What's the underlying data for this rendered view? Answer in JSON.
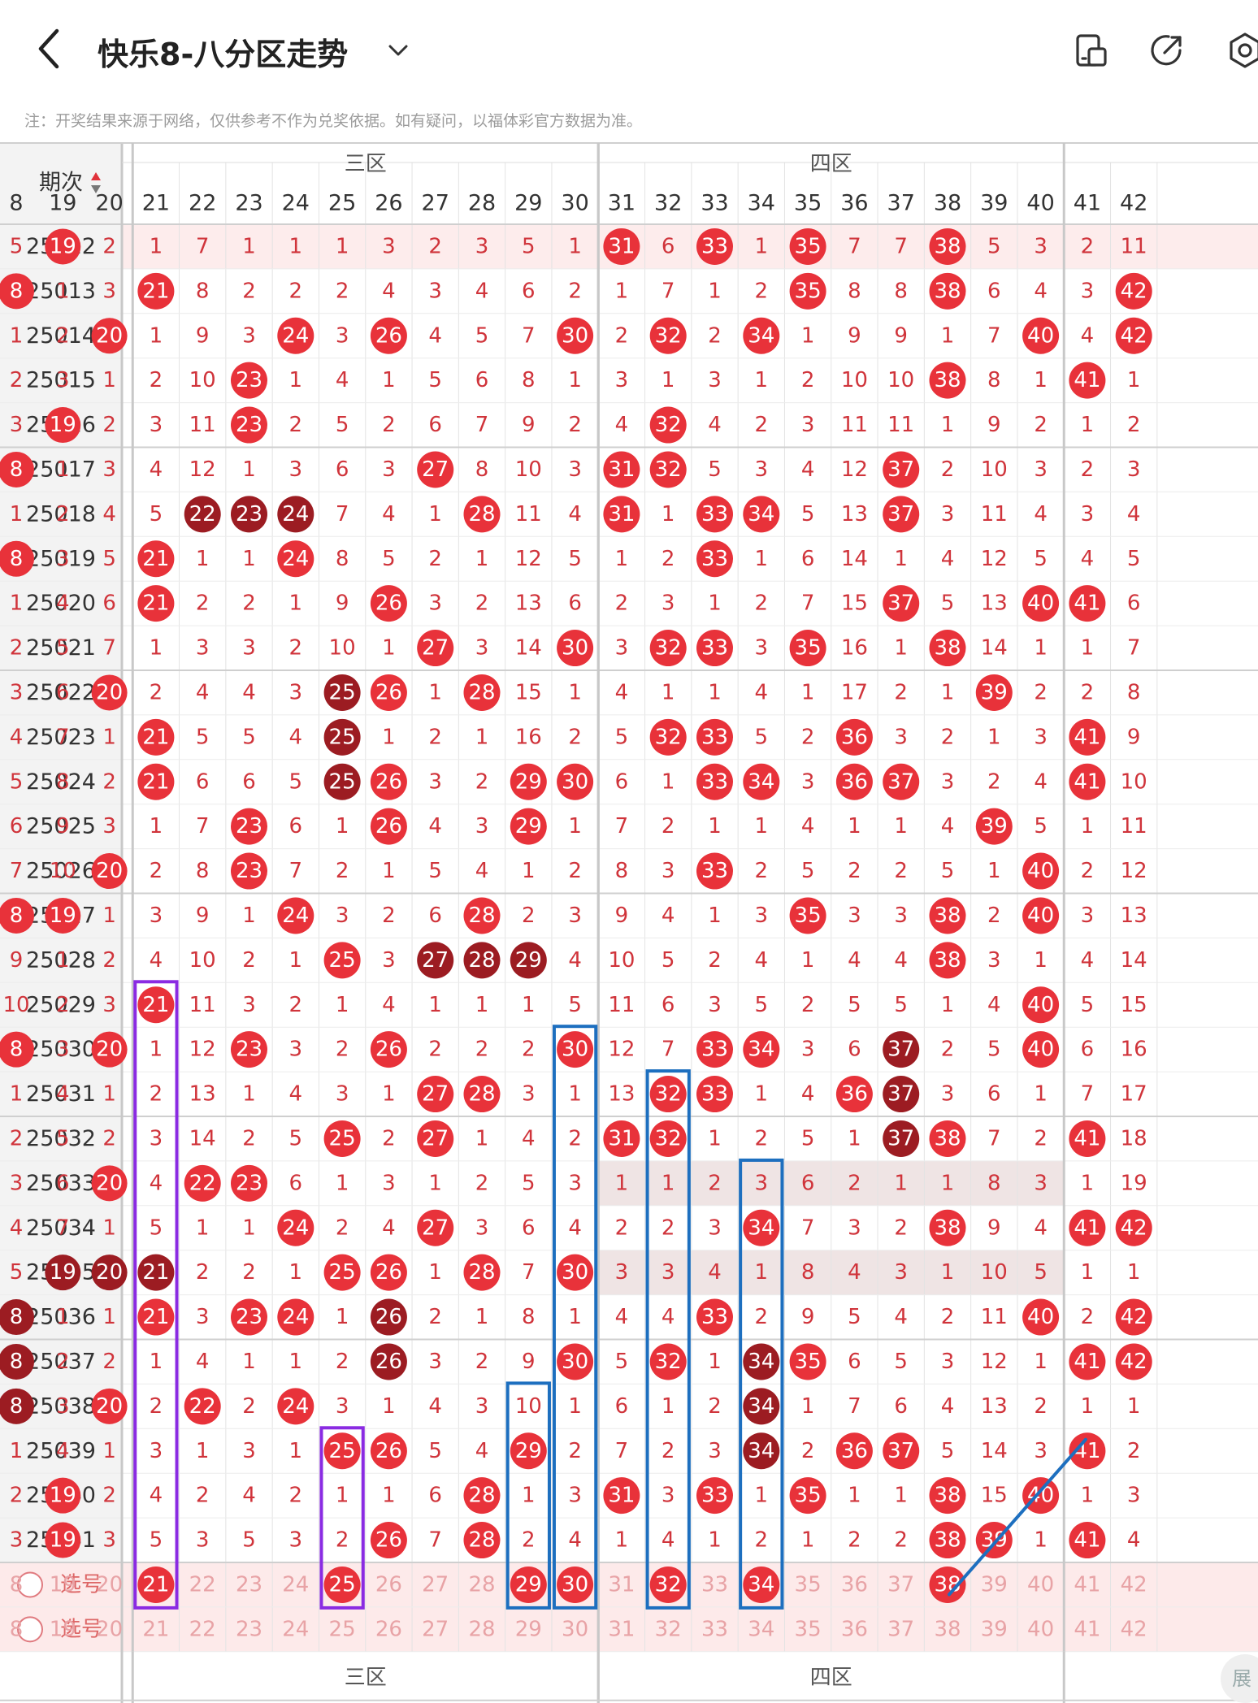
{
  "header": {
    "title": "快乐8-八分区走势",
    "note": "注：开奖结果来源于网络，仅供参考不作为兑奖依据。如有疑问，以福体彩官方数据为准。"
  },
  "icons": [
    "back-arrow-icon",
    "chevron-down-icon",
    "screen-split-icon",
    "share-icon",
    "settings-icon",
    "sort-arrows-icon",
    "radio-circle-icon"
  ],
  "colors": {
    "ball": "#e8323a",
    "ball_dark": "#9c1c22",
    "miss_text": "#d0343b",
    "accent_purple": "#8a2be2",
    "accent_blue": "#1d6fbf"
  },
  "table": {
    "period_header": "期次",
    "zones": [
      {
        "name": "三区",
        "from": 21,
        "to": 30
      },
      {
        "name": "四区",
        "from": 31,
        "to": 40
      }
    ],
    "visible_columns": [
      "8",
      "19",
      "20",
      "21",
      "22",
      "23",
      "24",
      "25",
      "26",
      "27",
      "28",
      "29",
      "30",
      "31",
      "32",
      "33",
      "34",
      "35",
      "36",
      "37",
      "38",
      "39",
      "40",
      "41",
      "42"
    ],
    "rows": [
      {
        "period": "25012",
        "cells": [
          "5",
          "19",
          "2",
          "1",
          "7",
          "1",
          "1",
          "1",
          "3",
          "2",
          "3",
          "5",
          "1",
          "31",
          "6",
          "33",
          "1",
          "35",
          "7",
          "7",
          "38",
          "5",
          "3",
          "2",
          "11"
        ]
      },
      {
        "period": "25013",
        "cells": [
          "8",
          "1",
          "3",
          "21",
          "8",
          "2",
          "2",
          "2",
          "4",
          "3",
          "4",
          "6",
          "2",
          "1",
          "7",
          "1",
          "2",
          "35",
          "8",
          "8",
          "38",
          "6",
          "4",
          "3",
          "42"
        ]
      },
      {
        "period": "25014",
        "cells": [
          "1",
          "2",
          "20",
          "1",
          "9",
          "3",
          "24",
          "3",
          "26",
          "4",
          "5",
          "7",
          "30",
          "2",
          "32",
          "2",
          "34",
          "1",
          "9",
          "9",
          "1",
          "7",
          "40",
          "4",
          "42"
        ]
      },
      {
        "period": "25015",
        "cells": [
          "2",
          "3",
          "1",
          "2",
          "10",
          "23",
          "1",
          "4",
          "1",
          "5",
          "6",
          "8",
          "1",
          "3",
          "1",
          "3",
          "1",
          "2",
          "10",
          "10",
          "38",
          "8",
          "1",
          "41",
          "1"
        ]
      },
      {
        "period": "25016",
        "cells": [
          "3",
          "19",
          "2",
          "3",
          "11",
          "23",
          "2",
          "5",
          "2",
          "6",
          "7",
          "9",
          "2",
          "4",
          "32",
          "4",
          "2",
          "3",
          "11",
          "11",
          "1",
          "9",
          "2",
          "1",
          "2"
        ]
      },
      {
        "period": "25017",
        "cells": [
          "8",
          "1",
          "3",
          "4",
          "12",
          "1",
          "3",
          "6",
          "3",
          "27",
          "8",
          "10",
          "3",
          "31",
          "32",
          "5",
          "3",
          "4",
          "12",
          "37",
          "2",
          "10",
          "3",
          "2",
          "3"
        ]
      },
      {
        "period": "25018",
        "cells": [
          "1",
          "2",
          "4",
          "5",
          "22",
          "23",
          "24",
          "7",
          "4",
          "1",
          "28",
          "11",
          "4",
          "31",
          "1",
          "33",
          "34",
          "5",
          "13",
          "37",
          "3",
          "11",
          "4",
          "3",
          "4"
        ]
      },
      {
        "period": "25019",
        "cells": [
          "8",
          "3",
          "5",
          "21",
          "1",
          "1",
          "24",
          "8",
          "5",
          "2",
          "1",
          "12",
          "5",
          "1",
          "2",
          "33",
          "1",
          "6",
          "14",
          "1",
          "4",
          "12",
          "5",
          "4",
          "5"
        ]
      },
      {
        "period": "25020",
        "cells": [
          "1",
          "4",
          "6",
          "21",
          "2",
          "2",
          "1",
          "9",
          "26",
          "3",
          "2",
          "13",
          "6",
          "2",
          "3",
          "1",
          "2",
          "7",
          "15",
          "37",
          "5",
          "13",
          "40",
          "41",
          "6"
        ]
      },
      {
        "period": "25021",
        "cells": [
          "2",
          "5",
          "7",
          "1",
          "3",
          "3",
          "2",
          "10",
          "1",
          "27",
          "3",
          "14",
          "30",
          "3",
          "32",
          "33",
          "3",
          "35",
          "16",
          "1",
          "38",
          "14",
          "1",
          "1",
          "7"
        ]
      },
      {
        "period": "25022",
        "cells": [
          "3",
          "6",
          "20",
          "2",
          "4",
          "4",
          "3",
          "25",
          "26",
          "1",
          "28",
          "15",
          "1",
          "4",
          "1",
          "1",
          "4",
          "1",
          "17",
          "2",
          "1",
          "39",
          "2",
          "2",
          "8"
        ]
      },
      {
        "period": "25023",
        "cells": [
          "4",
          "7",
          "1",
          "21",
          "5",
          "5",
          "4",
          "25",
          "1",
          "2",
          "1",
          "16",
          "2",
          "5",
          "32",
          "33",
          "5",
          "2",
          "36",
          "3",
          "2",
          "1",
          "3",
          "41",
          "9"
        ]
      },
      {
        "period": "25024",
        "cells": [
          "5",
          "8",
          "2",
          "21",
          "6",
          "6",
          "5",
          "25",
          "26",
          "3",
          "2",
          "29",
          "30",
          "6",
          "1",
          "33",
          "34",
          "3",
          "36",
          "37",
          "3",
          "2",
          "4",
          "41",
          "10"
        ]
      },
      {
        "period": "25025",
        "cells": [
          "6",
          "9",
          "3",
          "1",
          "7",
          "23",
          "6",
          "1",
          "26",
          "4",
          "3",
          "29",
          "1",
          "7",
          "2",
          "1",
          "1",
          "4",
          "1",
          "1",
          "4",
          "39",
          "5",
          "1",
          "11"
        ]
      },
      {
        "period": "25026",
        "cells": [
          "7",
          "10",
          "20",
          "2",
          "8",
          "23",
          "7",
          "2",
          "1",
          "5",
          "4",
          "1",
          "2",
          "8",
          "3",
          "33",
          "2",
          "5",
          "2",
          "2",
          "5",
          "1",
          "40",
          "2",
          "12"
        ]
      },
      {
        "period": "25027",
        "cells": [
          "8",
          "19",
          "1",
          "3",
          "9",
          "1",
          "24",
          "3",
          "2",
          "6",
          "28",
          "2",
          "3",
          "9",
          "4",
          "1",
          "3",
          "35",
          "3",
          "3",
          "38",
          "2",
          "40",
          "3",
          "13"
        ]
      },
      {
        "period": "25028",
        "cells": [
          "9",
          "1",
          "2",
          "4",
          "10",
          "2",
          "1",
          "25",
          "3",
          "27",
          "28",
          "29",
          "4",
          "10",
          "5",
          "2",
          "4",
          "1",
          "4",
          "4",
          "38",
          "3",
          "1",
          "4",
          "14"
        ]
      },
      {
        "period": "25029",
        "cells": [
          "10",
          "2",
          "3",
          "21",
          "11",
          "3",
          "2",
          "1",
          "4",
          "1",
          "1",
          "1",
          "5",
          "11",
          "6",
          "3",
          "5",
          "2",
          "5",
          "5",
          "1",
          "4",
          "40",
          "5",
          "15"
        ]
      },
      {
        "period": "25030",
        "cells": [
          "8",
          "3",
          "20",
          "1",
          "12",
          "23",
          "3",
          "2",
          "26",
          "2",
          "2",
          "2",
          "30",
          "12",
          "7",
          "33",
          "34",
          "3",
          "6",
          "37",
          "2",
          "5",
          "40",
          "6",
          "16"
        ]
      },
      {
        "period": "25031",
        "cells": [
          "1",
          "4",
          "1",
          "2",
          "13",
          "1",
          "4",
          "3",
          "1",
          "27",
          "28",
          "3",
          "1",
          "13",
          "32",
          "33",
          "1",
          "4",
          "36",
          "37",
          "3",
          "6",
          "1",
          "7",
          "17"
        ]
      },
      {
        "period": "25032",
        "cells": [
          "2",
          "5",
          "2",
          "3",
          "14",
          "2",
          "5",
          "25",
          "2",
          "27",
          "1",
          "4",
          "2",
          "31",
          "32",
          "1",
          "2",
          "5",
          "1",
          "37",
          "38",
          "7",
          "2",
          "41",
          "18"
        ]
      },
      {
        "period": "25033",
        "cells": [
          "3",
          "6",
          "20",
          "4",
          "22",
          "23",
          "6",
          "1",
          "3",
          "1",
          "2",
          "5",
          "3",
          "1",
          "1",
          "2",
          "3",
          "6",
          "2",
          "1",
          "1",
          "8",
          "3",
          "1",
          "19"
        ]
      },
      {
        "period": "25034",
        "cells": [
          "4",
          "7",
          "1",
          "5",
          "1",
          "1",
          "24",
          "2",
          "4",
          "27",
          "3",
          "6",
          "4",
          "2",
          "2",
          "3",
          "34",
          "7",
          "3",
          "2",
          "38",
          "9",
          "4",
          "41",
          "42"
        ]
      },
      {
        "period": "25035",
        "cells": [
          "5",
          "19",
          "20",
          "21",
          "2",
          "2",
          "1",
          "25",
          "26",
          "1",
          "28",
          "7",
          "30",
          "3",
          "3",
          "4",
          "1",
          "8",
          "4",
          "3",
          "1",
          "10",
          "5",
          "1",
          "1"
        ]
      },
      {
        "period": "25036",
        "cells": [
          "8",
          "1",
          "1",
          "21",
          "3",
          "23",
          "24",
          "1",
          "26",
          "2",
          "1",
          "8",
          "1",
          "4",
          "4",
          "33",
          "2",
          "9",
          "5",
          "4",
          "2",
          "11",
          "40",
          "2",
          "42"
        ]
      },
      {
        "period": "25037",
        "cells": [
          "8",
          "2",
          "2",
          "1",
          "4",
          "1",
          "1",
          "2",
          "26",
          "3",
          "2",
          "9",
          "30",
          "5",
          "32",
          "1",
          "34",
          "35",
          "6",
          "5",
          "3",
          "12",
          "1",
          "41",
          "42"
        ]
      },
      {
        "period": "25038",
        "cells": [
          "8",
          "3",
          "20",
          "2",
          "22",
          "2",
          "24",
          "3",
          "1",
          "4",
          "3",
          "10",
          "1",
          "6",
          "1",
          "2",
          "34",
          "1",
          "7",
          "6",
          "4",
          "13",
          "2",
          "1",
          "1"
        ]
      },
      {
        "period": "25039",
        "cells": [
          "1",
          "4",
          "1",
          "3",
          "1",
          "3",
          "1",
          "25",
          "26",
          "5",
          "4",
          "29",
          "2",
          "7",
          "2",
          "3",
          "34",
          "2",
          "36",
          "37",
          "5",
          "14",
          "3",
          "41",
          "2"
        ]
      },
      {
        "period": "25040",
        "cells": [
          "2",
          "19",
          "2",
          "4",
          "2",
          "4",
          "2",
          "1",
          "1",
          "6",
          "28",
          "1",
          "3",
          "31",
          "3",
          "33",
          "1",
          "35",
          "1",
          "1",
          "38",
          "15",
          "40",
          "1",
          "3"
        ]
      },
      {
        "period": "25041",
        "cells": [
          "3",
          "19",
          "3",
          "5",
          "3",
          "5",
          "3",
          "2",
          "26",
          "7",
          "28",
          "2",
          "4",
          "1",
          "4",
          "1",
          "2",
          "1",
          "2",
          "2",
          "38",
          "39",
          "1",
          "41",
          "4"
        ]
      }
    ],
    "dark_balls": [
      {
        "period": "25018",
        "number": "22"
      },
      {
        "period": "25018",
        "number": "23"
      },
      {
        "period": "25018",
        "number": "24"
      },
      {
        "period": "25022",
        "number": "25"
      },
      {
        "period": "25023",
        "number": "25"
      },
      {
        "period": "25024",
        "number": "25"
      },
      {
        "period": "25028",
        "number": "27"
      },
      {
        "period": "25028",
        "number": "28"
      },
      {
        "period": "25028",
        "number": "29"
      },
      {
        "period": "25030",
        "number": "37"
      },
      {
        "period": "25031",
        "number": "37"
      },
      {
        "period": "25032",
        "number": "37"
      },
      {
        "period": "25035",
        "number": "19"
      },
      {
        "period": "25035",
        "number": "20"
      },
      {
        "period": "25035",
        "number": "21"
      },
      {
        "period": "25036",
        "number": "8"
      },
      {
        "period": "25037",
        "number": "8"
      },
      {
        "period": "25038",
        "number": "8"
      },
      {
        "period": "25036",
        "number": "26"
      },
      {
        "period": "25037",
        "number": "26"
      },
      {
        "period": "25037",
        "number": "34"
      },
      {
        "period": "25038",
        "number": "34"
      },
      {
        "period": "25039",
        "number": "34"
      }
    ],
    "select_rows": [
      {
        "label": "选号",
        "picked": [
          "21",
          "25",
          "29",
          "30",
          "32",
          "34",
          "38"
        ]
      },
      {
        "label": "选号",
        "picked": []
      }
    ]
  }
}
